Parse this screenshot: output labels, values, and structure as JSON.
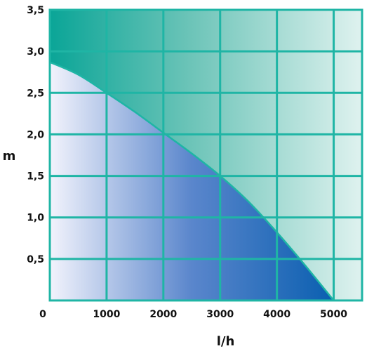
{
  "chart_data": {
    "type": "area",
    "xlabel": "l/h",
    "ylabel": "m",
    "xlim": [
      0,
      5500
    ],
    "ylim": [
      0,
      3.5
    ],
    "x_ticks": [
      {
        "value": 0,
        "label": "0"
      },
      {
        "value": 1000,
        "label": "1000"
      },
      {
        "value": 2000,
        "label": "2000"
      },
      {
        "value": 3000,
        "label": "3000"
      },
      {
        "value": 4000,
        "label": "4000"
      },
      {
        "value": 5000,
        "label": "5000"
      }
    ],
    "y_ticks": [
      {
        "value": 0.5,
        "label": "0,5"
      },
      {
        "value": 1.0,
        "label": "1,0"
      },
      {
        "value": 1.5,
        "label": "1,5"
      },
      {
        "value": 2.0,
        "label": "2,0"
      },
      {
        "value": 2.5,
        "label": "2,5"
      },
      {
        "value": 3.0,
        "label": "3,0"
      },
      {
        "value": 3.5,
        "label": "3,5"
      }
    ],
    "grid": true,
    "series": [
      {
        "x": [
          0,
          500,
          1000,
          1500,
          2000,
          2500,
          3000,
          3500,
          4000,
          4500,
          5000
        ],
        "y": [
          2.87,
          2.72,
          2.5,
          2.27,
          2.02,
          1.77,
          1.5,
          1.19,
          0.82,
          0.42,
          0.0
        ]
      }
    ],
    "colors": {
      "grid": "#1fb5a5",
      "upper_dark": "#0aa597",
      "upper_light": "#dff2ef",
      "lower_light": "#f2f3fc",
      "lower_dark": "#0a5fb0"
    }
  }
}
